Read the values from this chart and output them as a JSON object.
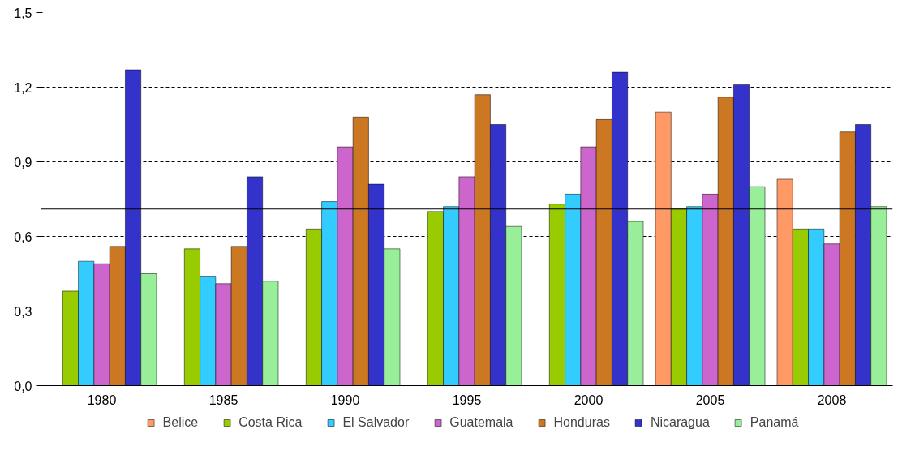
{
  "chart_data": {
    "type": "bar",
    "categories": [
      "1980",
      "1985",
      "1990",
      "1995",
      "2000",
      "2005",
      "2008"
    ],
    "series": [
      {
        "name": "Belice",
        "color": "#ff9966",
        "values": [
          null,
          null,
          null,
          null,
          null,
          1.1,
          0.83
        ]
      },
      {
        "name": "Costa Rica",
        "color": "#99cc00",
        "values": [
          0.38,
          0.55,
          0.63,
          0.7,
          0.73,
          0.71,
          0.63
        ]
      },
      {
        "name": "El Salvador",
        "color": "#33ccff",
        "values": [
          0.5,
          0.44,
          0.74,
          0.72,
          0.77,
          0.72,
          0.63
        ]
      },
      {
        "name": "Guatemala",
        "color": "#cc66cc",
        "values": [
          0.49,
          0.41,
          0.96,
          0.84,
          0.96,
          0.77,
          0.57
        ]
      },
      {
        "name": "Honduras",
        "color": "#cc7722",
        "values": [
          0.56,
          0.56,
          1.08,
          1.17,
          1.07,
          1.16,
          1.02
        ]
      },
      {
        "name": "Nicaragua",
        "color": "#3333cc",
        "values": [
          1.27,
          0.84,
          0.81,
          1.05,
          1.26,
          1.21,
          1.05
        ]
      },
      {
        "name": "Panamá",
        "color": "#99ee99",
        "values": [
          0.45,
          0.42,
          0.55,
          0.64,
          0.66,
          0.8,
          0.72
        ]
      }
    ],
    "ylim": [
      0,
      1.5
    ],
    "yticks": [
      {
        "value": 0,
        "label": "0,0"
      },
      {
        "value": 0.3,
        "label": "0,3"
      },
      {
        "value": 0.6,
        "label": "0,6"
      },
      {
        "value": 0.9,
        "label": "0,9"
      },
      {
        "value": 1.2,
        "label": "1,2"
      },
      {
        "value": 1.5,
        "label": "1,5"
      }
    ],
    "ref_lines": [
      {
        "axis": "y",
        "value": 0.71,
        "color": "#000000"
      }
    ],
    "grid": "y",
    "legend": "bottom"
  }
}
